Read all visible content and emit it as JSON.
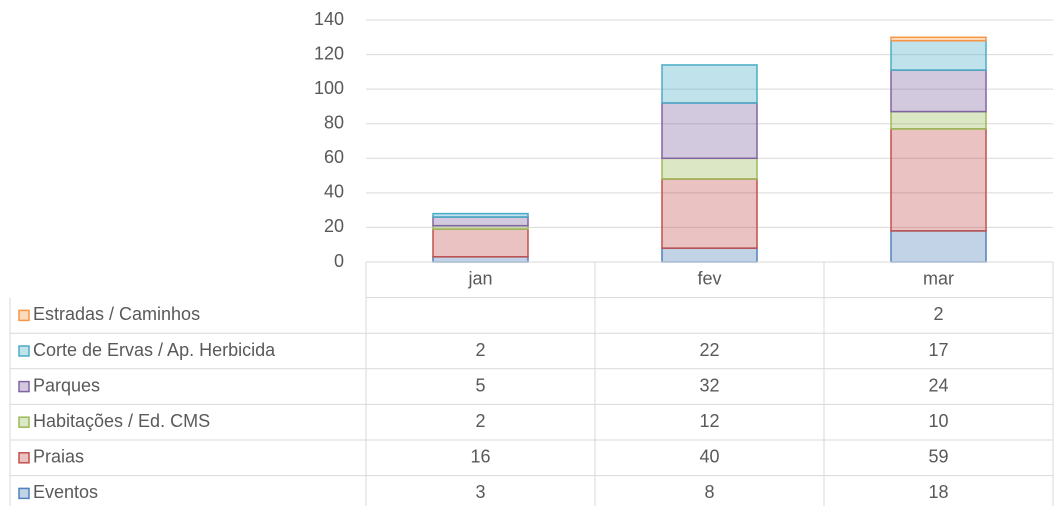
{
  "chart_data": {
    "type": "stacked_bar",
    "categories": [
      "jan",
      "fev",
      "mar"
    ],
    "series": [
      {
        "name": "Eventos",
        "color": "#4f81bd",
        "values": [
          3,
          8,
          18
        ]
      },
      {
        "name": "Praias",
        "color": "#c0504d",
        "values": [
          16,
          40,
          59
        ]
      },
      {
        "name": "Habitações / Ed. CMS",
        "color": "#9bbb59",
        "values": [
          2,
          12,
          10
        ]
      },
      {
        "name": "Parques",
        "color": "#8064a2",
        "values": [
          5,
          32,
          24
        ]
      },
      {
        "name": "Corte de Ervas / Ap. Herbicida",
        "color": "#4bacc6",
        "values": [
          2,
          22,
          17
        ]
      },
      {
        "name": "Estradas / Caminhos",
        "color": "#f79646",
        "values": [
          null,
          null,
          2
        ]
      }
    ],
    "ylim": [
      0,
      140
    ],
    "yticks": [
      0,
      20,
      40,
      60,
      80,
      100,
      120,
      140
    ],
    "grid": true,
    "data_table": true
  }
}
